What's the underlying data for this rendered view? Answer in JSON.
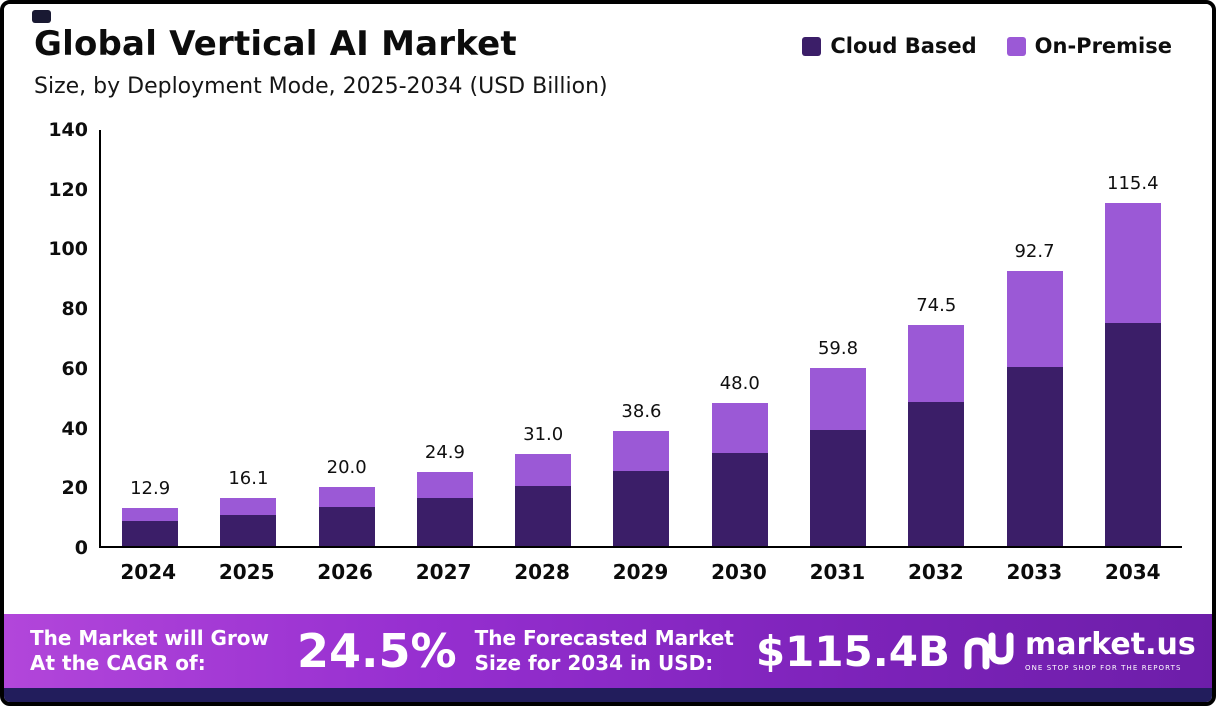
{
  "chart_data": {
    "type": "bar",
    "stacked": true,
    "title": "Global Vertical AI Market",
    "subtitle": "Size, by Deployment Mode, 2025-2034 (USD Billion)",
    "unit": "USD Billion",
    "categories": [
      "2024",
      "2025",
      "2026",
      "2027",
      "2028",
      "2029",
      "2030",
      "2031",
      "2032",
      "2033",
      "2034"
    ],
    "series": [
      {
        "name": "Cloud Based",
        "color": "#3b1e68",
        "values": [
          8.4,
          10.5,
          13.0,
          16.2,
          20.2,
          25.1,
          31.2,
          38.9,
          48.4,
          60.3,
          75.0
        ]
      },
      {
        "name": "On-Premise",
        "color": "#9b59d6",
        "values": [
          4.5,
          5.6,
          7.0,
          8.7,
          10.8,
          13.5,
          16.8,
          20.9,
          26.1,
          32.4,
          40.4
        ]
      }
    ],
    "totals": [
      12.9,
      16.1,
      20.0,
      24.9,
      31.0,
      38.6,
      48.0,
      59.8,
      74.5,
      92.7,
      115.4
    ],
    "total_labels": [
      "12.9",
      "16.1",
      "20.0",
      "24.9",
      "31.0",
      "38.6",
      "48.0",
      "59.8",
      "74.5",
      "92.7",
      "115.4"
    ],
    "y_ticks": [
      0,
      20,
      40,
      60,
      80,
      100,
      120,
      140
    ],
    "ylim": [
      0,
      140
    ],
    "grid": false,
    "legend_position": "top-right"
  },
  "banner": {
    "cagr_label_line1": "The Market will Grow",
    "cagr_label_line2": "At the CAGR of:",
    "cagr_value": "24.5%",
    "forecast_label_line1": "The Forecasted Market",
    "forecast_label_line2": "Size for 2034 in USD:",
    "forecast_value": "$115.4B",
    "brand_name": "market.us",
    "brand_tagline": "ONE STOP SHOP FOR THE REPORTS"
  }
}
